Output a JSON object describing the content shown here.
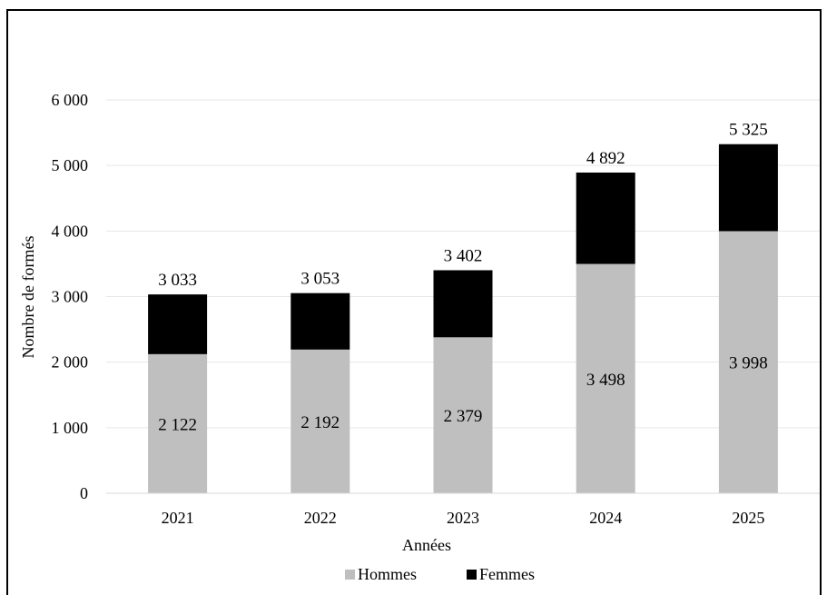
{
  "chart_data": {
    "type": "bar",
    "stacked": true,
    "categories": [
      "2021",
      "2022",
      "2023",
      "2024",
      "2025"
    ],
    "series": [
      {
        "name": "Hommes",
        "color": "#bfbfbf",
        "values": [
          2122,
          2192,
          2379,
          3498,
          3998
        ],
        "value_labels": [
          "2 122",
          "2 192",
          "2 379",
          "3 498",
          "3 998"
        ]
      },
      {
        "name": "Femmes",
        "color": "#000000",
        "values": [
          911,
          861,
          1023,
          1394,
          1327
        ]
      }
    ],
    "totals": [
      3033,
      3053,
      3402,
      4892,
      5325
    ],
    "total_labels": [
      "3 033",
      "3 053",
      "3 402",
      "4 892",
      "5 325"
    ],
    "xlabel": "Années",
    "ylabel": "Nombre de formés",
    "ylim": [
      0,
      6000
    ],
    "yticks": [
      0,
      1000,
      2000,
      3000,
      4000,
      5000,
      6000
    ],
    "ytick_labels": [
      "0",
      "1 000",
      "2 000",
      "3 000",
      "4 000",
      "5 000",
      "6 000"
    ],
    "grid": true,
    "legend_position": "bottom"
  }
}
